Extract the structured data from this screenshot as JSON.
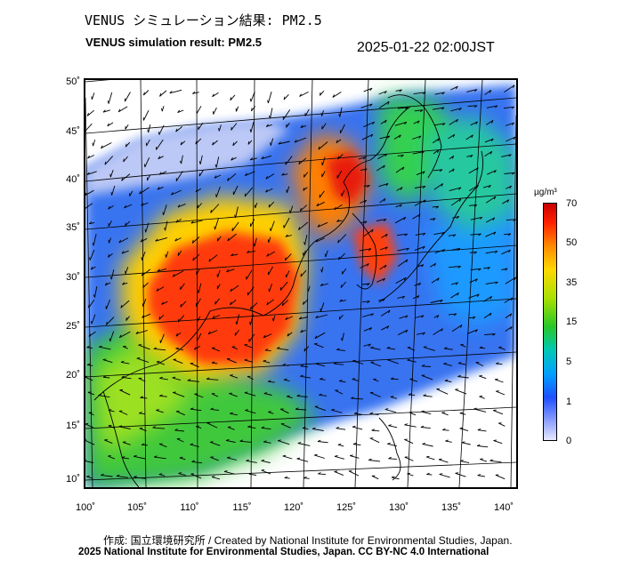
{
  "header": {
    "title_jp": "VENUS シミュレーション結果: PM2.5",
    "title_en": "VENUS simulation result: PM2.5",
    "timestamp": "2025-01-22 02:00JST"
  },
  "map": {
    "latitude_labels": [
      "50˚",
      "45˚",
      "40˚",
      "35˚",
      "30˚",
      "25˚",
      "20˚",
      "15˚",
      "10˚"
    ],
    "longitude_labels": [
      "100˚",
      "105˚",
      "110˚",
      "115˚",
      "120˚",
      "125˚",
      "130˚",
      "135˚",
      "140˚"
    ],
    "variable": "PM2.5 concentration with wind vectors"
  },
  "colorbar": {
    "unit": "µg/m³",
    "ticks": [
      "70",
      "50",
      "35",
      "15",
      "5",
      "1",
      "0"
    ],
    "colors": [
      "#c80000",
      "#ff8a00",
      "#ffd800",
      "#28c828",
      "#00c8b4",
      "#00a0ff",
      "#1e50ff",
      "#e6e8ff"
    ]
  },
  "footer": {
    "credit": "作成: 国立環境研究所 / Created by National Institute for Environmental Studies, Japan.",
    "license": "2025 National Institute for Environmental Studies, Japan. CC BY-NC 4.0 International"
  }
}
